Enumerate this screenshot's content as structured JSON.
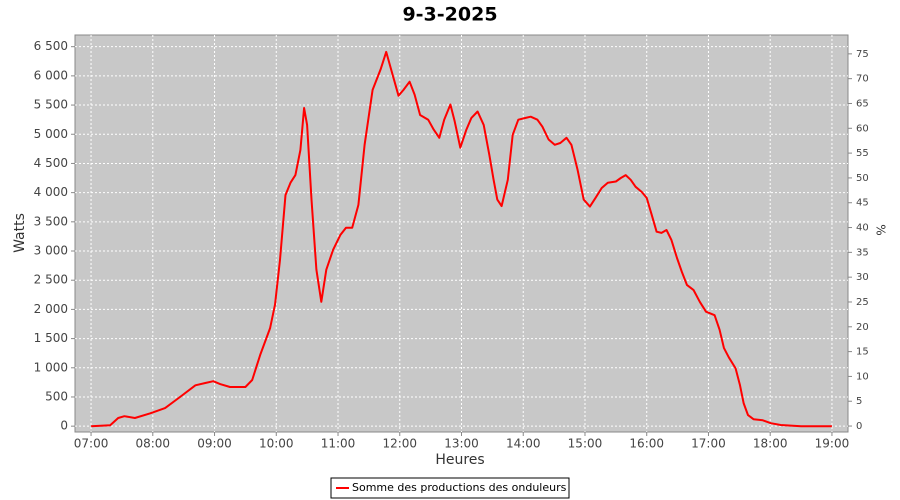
{
  "chart_data": {
    "type": "line",
    "title": "9-3-2025",
    "x_label": "Heures",
    "y_label": "Watts",
    "y2_label": "%",
    "x": [
      7.0,
      7.31,
      7.44,
      7.54,
      7.71,
      7.96,
      8.2,
      8.44,
      8.69,
      8.85,
      8.98,
      9.09,
      9.25,
      9.5,
      9.61,
      9.74,
      9.9,
      9.98,
      10.06,
      10.15,
      10.23,
      10.31,
      10.39,
      10.45,
      10.5,
      10.57,
      10.65,
      10.73,
      10.81,
      10.92,
      11.04,
      11.13,
      11.23,
      11.33,
      11.43,
      11.56,
      11.69,
      11.78,
      11.86,
      11.98,
      12.06,
      12.16,
      12.24,
      12.33,
      12.46,
      12.55,
      12.64,
      12.72,
      12.82,
      12.89,
      12.98,
      13.08,
      13.16,
      13.26,
      13.36,
      13.45,
      13.52,
      13.58,
      13.65,
      13.75,
      13.83,
      13.92,
      14.04,
      14.12,
      14.23,
      14.31,
      14.41,
      14.51,
      14.6,
      14.7,
      14.78,
      14.88,
      14.98,
      15.08,
      15.17,
      15.27,
      15.37,
      15.5,
      15.58,
      15.66,
      15.74,
      15.82,
      15.92,
      16.0,
      16.08,
      16.16,
      16.24,
      16.32,
      16.4,
      16.49,
      16.57,
      16.65,
      16.76,
      16.86,
      16.96,
      17.1,
      17.18,
      17.25,
      17.33,
      17.44,
      17.51,
      17.57,
      17.64,
      17.73,
      17.88,
      18.01,
      18.17,
      18.5,
      19.0
    ],
    "series": [
      {
        "name": "Somme des productions des onduleurs",
        "color": "#ff0000",
        "values": [
          0,
          15,
          140,
          170,
          140,
          220,
          310,
          500,
          700,
          740,
          770,
          720,
          670,
          670,
          790,
          1220,
          1680,
          2080,
          2850,
          3960,
          4170,
          4300,
          4730,
          5450,
          5160,
          3880,
          2680,
          2130,
          2680,
          3020,
          3280,
          3400,
          3400,
          3790,
          4820,
          5760,
          6110,
          6410,
          6110,
          5660,
          5760,
          5900,
          5680,
          5330,
          5250,
          5080,
          4940,
          5250,
          5510,
          5220,
          4770,
          5080,
          5280,
          5390,
          5160,
          4650,
          4220,
          3880,
          3770,
          4220,
          4990,
          5250,
          5280,
          5300,
          5250,
          5130,
          4910,
          4820,
          4850,
          4940,
          4820,
          4390,
          3880,
          3760,
          3910,
          4080,
          4170,
          4190,
          4250,
          4300,
          4220,
          4100,
          4010,
          3910,
          3620,
          3330,
          3310,
          3360,
          3190,
          2880,
          2640,
          2420,
          2330,
          2130,
          1960,
          1900,
          1650,
          1340,
          1180,
          990,
          700,
          390,
          190,
          120,
          100,
          50,
          20,
          0,
          0
        ]
      }
    ],
    "xlim": [
      6.74,
      19.26
    ],
    "xticks": [
      {
        "value": 7,
        "label": "07:00"
      },
      {
        "value": 8,
        "label": "08:00"
      },
      {
        "value": 9,
        "label": "09:00"
      },
      {
        "value": 10,
        "label": "10:00"
      },
      {
        "value": 11,
        "label": "11:00"
      },
      {
        "value": 12,
        "label": "12:00"
      },
      {
        "value": 13,
        "label": "13:00"
      },
      {
        "value": 14,
        "label": "14:00"
      },
      {
        "value": 15,
        "label": "15:00"
      },
      {
        "value": 16,
        "label": "16:00"
      },
      {
        "value": 17,
        "label": "17:00"
      },
      {
        "value": 18,
        "label": "18:00"
      },
      {
        "value": 19,
        "label": "19:00"
      }
    ],
    "ylim": [
      -100,
      6700
    ],
    "yticks": [
      0,
      500,
      {
        "value": 1000,
        "label": "1 000"
      },
      {
        "value": 1500,
        "label": "1 500"
      },
      {
        "value": 2000,
        "label": "2 000"
      },
      {
        "value": 2500,
        "label": "2 500"
      },
      {
        "value": 3000,
        "label": "3 000"
      },
      {
        "value": 3500,
        "label": "3 500"
      },
      {
        "value": 4000,
        "label": "4 000"
      },
      {
        "value": 4500,
        "label": "4 500"
      },
      {
        "value": 5000,
        "label": "5 000"
      },
      {
        "value": 5500,
        "label": "5 500"
      },
      {
        "value": 6000,
        "label": "6 000"
      },
      {
        "value": 6500,
        "label": "6 500"
      }
    ],
    "y2lim": [
      -1.2,
      78.8
    ],
    "y2ticks": [
      0,
      5,
      10,
      15,
      20,
      25,
      30,
      35,
      40,
      45,
      50,
      55,
      60,
      65,
      70,
      75
    ],
    "grid": true,
    "legend": "bottom"
  }
}
